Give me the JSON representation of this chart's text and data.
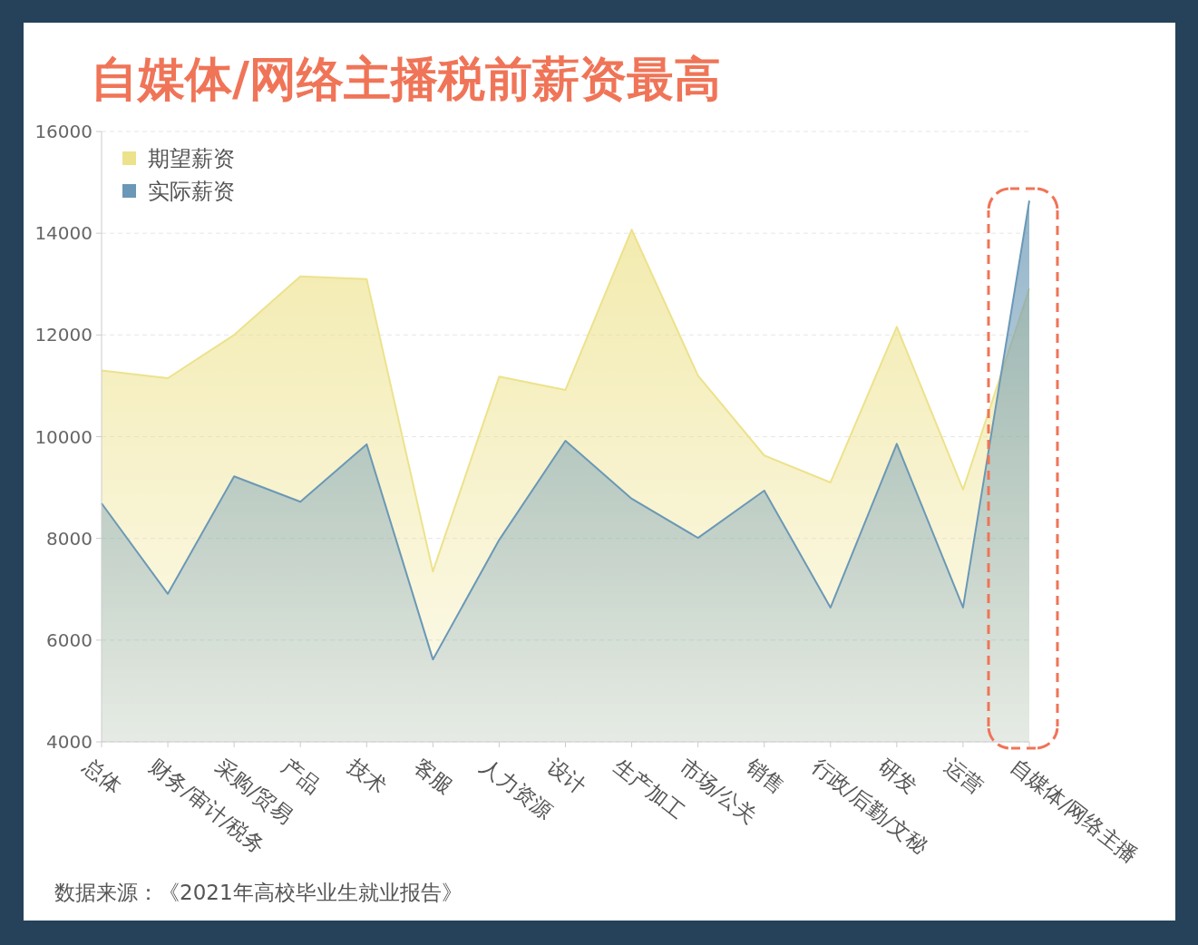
{
  "chart_data": {
    "type": "area",
    "title": "自媒体/网络主播税前薪资最高",
    "categories": [
      "总体",
      "财务/审计/税务",
      "采购/贸易",
      "产品",
      "技术",
      "客服",
      "人力资源",
      "设计",
      "生产加工",
      "市场/公关",
      "销售",
      "行政/后勤/文秘",
      "研发",
      "运营",
      "自媒体/网络主播"
    ],
    "series": [
      {
        "name": "期望薪资",
        "color": "#ede28c",
        "values": [
          11300,
          11150,
          12000,
          13150,
          13100,
          7350,
          11180,
          10920,
          14070,
          11200,
          9630,
          9100,
          12160,
          8960,
          12910
        ]
      },
      {
        "name": "实际薪资",
        "color": "#6b98b6",
        "values": [
          8690,
          6910,
          9220,
          8720,
          9850,
          5620,
          7970,
          9920,
          8780,
          8010,
          8940,
          6640,
          9860,
          6640,
          14640
        ]
      }
    ],
    "ylim": [
      4000,
      16000
    ],
    "yticks": [
      4000,
      6000,
      8000,
      10000,
      12000,
      14000,
      16000
    ],
    "grid": "y",
    "legend": "top left",
    "annotations": [
      "数据来源：《2021年高校毕业生就业报告》"
    ]
  }
}
